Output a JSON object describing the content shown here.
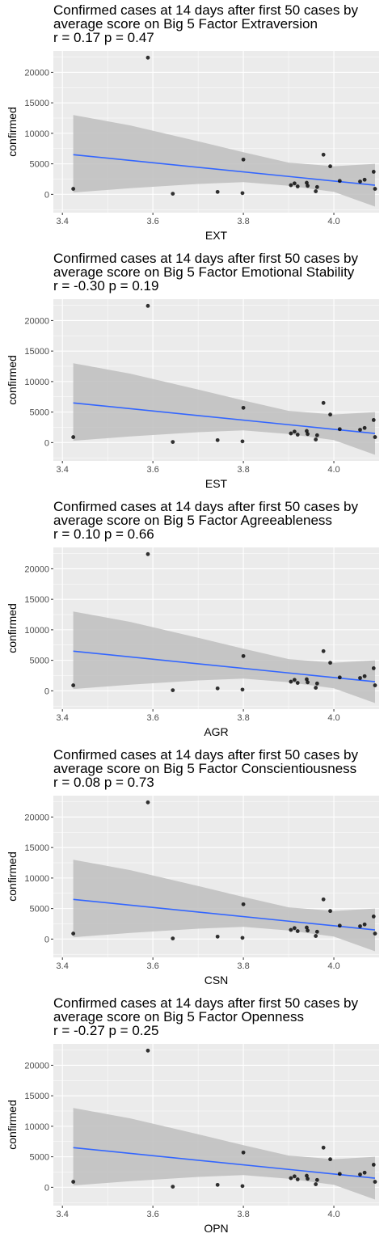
{
  "chart_data": [
    {
      "type": "scatter",
      "title": "Confirmed cases at 14 days after first 50 cases by",
      "subtitle": "average score on Big 5 Factor Extraversion",
      "stat_label": "r = 0.17 p = 0.47",
      "xlabel": "EXT",
      "ylabel": "confirmed",
      "xlim": [
        3.38,
        4.1
      ],
      "ylim": [
        -3000,
        23500
      ],
      "x_ticks": [
        3.4,
        3.6,
        3.8,
        4.0
      ],
      "x_tick_labels": [
        "3.4",
        "3.6",
        "3.8",
        "4.0"
      ],
      "y_ticks": [
        0,
        5000,
        10000,
        15000,
        20000
      ],
      "y_tick_labels": [
        "0",
        "5000",
        "10000",
        "15000",
        "20000"
      ],
      "grid": true,
      "points": {
        "x": [
          3.424,
          3.589,
          3.644,
          3.743,
          3.798,
          3.8,
          3.905,
          3.913,
          3.92,
          3.94,
          3.942,
          3.96,
          3.963,
          3.977,
          3.992,
          4.013,
          4.058,
          4.068,
          4.088,
          4.091
        ],
        "y": [
          900,
          22400,
          100,
          400,
          200,
          5700,
          1500,
          1800,
          1300,
          1900,
          1400,
          500,
          1200,
          6500,
          4600,
          2200,
          2100,
          2400,
          3700,
          900
        ]
      },
      "fit_line": {
        "x": [
          3.424,
          4.091
        ],
        "y": [
          6500,
          1500
        ]
      },
      "confidence_band": {
        "x": [
          3.424,
          3.55,
          3.7,
          3.8,
          3.9,
          4.0,
          4.091
        ],
        "upper": [
          13000,
          11300,
          8700,
          6900,
          5200,
          4600,
          5000
        ],
        "lower": [
          300,
          1000,
          1700,
          2000,
          1400,
          400,
          -2000
        ]
      },
      "colors": {
        "panel": "#ebebeb",
        "grid": "#ffffff",
        "band": "#bebebe",
        "line": "#3366ff",
        "point": "#000000"
      }
    },
    {
      "type": "scatter",
      "title": "Confirmed cases at 14 days after first 50 cases by",
      "subtitle": "average score on Big 5 Factor Emotional Stability",
      "stat_label": "r = -0.30 p = 0.19",
      "xlabel": "EST",
      "ylabel": "confirmed",
      "xlim": [
        3.38,
        4.1
      ],
      "ylim": [
        -3000,
        23500
      ],
      "x_ticks": [
        3.4,
        3.6,
        3.8,
        4.0
      ],
      "x_tick_labels": [
        "3.4",
        "3.6",
        "3.8",
        "4.0"
      ],
      "y_ticks": [
        0,
        5000,
        10000,
        15000,
        20000
      ],
      "y_tick_labels": [
        "0",
        "5000",
        "10000",
        "15000",
        "20000"
      ],
      "grid": true,
      "points": {
        "x": [
          3.424,
          3.589,
          3.644,
          3.743,
          3.798,
          3.8,
          3.905,
          3.913,
          3.92,
          3.94,
          3.942,
          3.96,
          3.963,
          3.977,
          3.992,
          4.013,
          4.058,
          4.068,
          4.088,
          4.091
        ],
        "y": [
          900,
          22400,
          100,
          400,
          200,
          5700,
          1500,
          1800,
          1300,
          1900,
          1400,
          500,
          1200,
          6500,
          4600,
          2200,
          2100,
          2400,
          3700,
          900
        ]
      },
      "fit_line": {
        "x": [
          3.424,
          4.091
        ],
        "y": [
          6500,
          1500
        ]
      },
      "confidence_band": {
        "x": [
          3.424,
          3.55,
          3.7,
          3.8,
          3.9,
          4.0,
          4.091
        ],
        "upper": [
          13000,
          11300,
          8700,
          6900,
          5200,
          4600,
          5000
        ],
        "lower": [
          300,
          1000,
          1700,
          2000,
          1400,
          400,
          -2000
        ]
      },
      "colors": {
        "panel": "#ebebeb",
        "grid": "#ffffff",
        "band": "#bebebe",
        "line": "#3366ff",
        "point": "#000000"
      }
    },
    {
      "type": "scatter",
      "title": "Confirmed cases at 14 days after first 50 cases by",
      "subtitle": "average score on Big 5 Factor Agreeableness",
      "stat_label": "r = 0.10 p = 0.66",
      "xlabel": "AGR",
      "ylabel": "confirmed",
      "xlim": [
        3.38,
        4.1
      ],
      "ylim": [
        -3000,
        23500
      ],
      "x_ticks": [
        3.4,
        3.6,
        3.8,
        4.0
      ],
      "x_tick_labels": [
        "3.4",
        "3.6",
        "3.8",
        "4.0"
      ],
      "y_ticks": [
        0,
        5000,
        10000,
        15000,
        20000
      ],
      "y_tick_labels": [
        "0",
        "5000",
        "10000",
        "15000",
        "20000"
      ],
      "grid": true,
      "points": {
        "x": [
          3.424,
          3.589,
          3.644,
          3.743,
          3.798,
          3.8,
          3.905,
          3.913,
          3.92,
          3.94,
          3.942,
          3.96,
          3.963,
          3.977,
          3.992,
          4.013,
          4.058,
          4.068,
          4.088,
          4.091
        ],
        "y": [
          900,
          22400,
          100,
          400,
          200,
          5700,
          1500,
          1800,
          1300,
          1900,
          1400,
          500,
          1200,
          6500,
          4600,
          2200,
          2100,
          2400,
          3700,
          900
        ]
      },
      "fit_line": {
        "x": [
          3.424,
          4.091
        ],
        "y": [
          6500,
          1500
        ]
      },
      "confidence_band": {
        "x": [
          3.424,
          3.55,
          3.7,
          3.8,
          3.9,
          4.0,
          4.091
        ],
        "upper": [
          13000,
          11300,
          8700,
          6900,
          5200,
          4600,
          5000
        ],
        "lower": [
          300,
          1000,
          1700,
          2000,
          1400,
          400,
          -2000
        ]
      },
      "colors": {
        "panel": "#ebebeb",
        "grid": "#ffffff",
        "band": "#bebebe",
        "line": "#3366ff",
        "point": "#000000"
      }
    },
    {
      "type": "scatter",
      "title": "Confirmed cases at 14 days after first 50 cases by",
      "subtitle": "average score on Big 5 Factor Conscientiousness",
      "stat_label": "r = 0.08 p = 0.73",
      "xlabel": "CSN",
      "ylabel": "confirmed",
      "xlim": [
        3.38,
        4.1
      ],
      "ylim": [
        -3000,
        23500
      ],
      "x_ticks": [
        3.4,
        3.6,
        3.8,
        4.0
      ],
      "x_tick_labels": [
        "3.4",
        "3.6",
        "3.8",
        "4.0"
      ],
      "y_ticks": [
        0,
        5000,
        10000,
        15000,
        20000
      ],
      "y_tick_labels": [
        "0",
        "5000",
        "10000",
        "15000",
        "20000"
      ],
      "grid": true,
      "points": {
        "x": [
          3.424,
          3.589,
          3.644,
          3.743,
          3.798,
          3.8,
          3.905,
          3.913,
          3.92,
          3.94,
          3.942,
          3.96,
          3.963,
          3.977,
          3.992,
          4.013,
          4.058,
          4.068,
          4.088,
          4.091
        ],
        "y": [
          900,
          22400,
          100,
          400,
          200,
          5700,
          1500,
          1800,
          1300,
          1900,
          1400,
          500,
          1200,
          6500,
          4600,
          2200,
          2100,
          2400,
          3700,
          900
        ]
      },
      "fit_line": {
        "x": [
          3.424,
          4.091
        ],
        "y": [
          6500,
          1500
        ]
      },
      "confidence_band": {
        "x": [
          3.424,
          3.55,
          3.7,
          3.8,
          3.9,
          4.0,
          4.091
        ],
        "upper": [
          13000,
          11300,
          8700,
          6900,
          5200,
          4600,
          5000
        ],
        "lower": [
          300,
          1000,
          1700,
          2000,
          1400,
          400,
          -2000
        ]
      },
      "colors": {
        "panel": "#ebebeb",
        "grid": "#ffffff",
        "band": "#bebebe",
        "line": "#3366ff",
        "point": "#000000"
      }
    },
    {
      "type": "scatter",
      "title": "Confirmed cases at 14 days after first 50 cases by",
      "subtitle": "average score on Big 5 Factor Openness",
      "stat_label": "r = -0.27 p = 0.25",
      "xlabel": "OPN",
      "ylabel": "confirmed",
      "xlim": [
        3.38,
        4.1
      ],
      "ylim": [
        -3000,
        23500
      ],
      "x_ticks": [
        3.4,
        3.6,
        3.8,
        4.0
      ],
      "x_tick_labels": [
        "3.4",
        "3.6",
        "3.8",
        "4.0"
      ],
      "y_ticks": [
        0,
        5000,
        10000,
        15000,
        20000
      ],
      "y_tick_labels": [
        "0",
        "5000",
        "10000",
        "15000",
        "20000"
      ],
      "grid": true,
      "points": {
        "x": [
          3.424,
          3.589,
          3.644,
          3.743,
          3.798,
          3.8,
          3.905,
          3.913,
          3.92,
          3.94,
          3.942,
          3.96,
          3.963,
          3.977,
          3.992,
          4.013,
          4.058,
          4.068,
          4.088,
          4.091
        ],
        "y": [
          900,
          22400,
          100,
          400,
          200,
          5700,
          1500,
          1800,
          1300,
          1900,
          1400,
          500,
          1200,
          6500,
          4600,
          2200,
          2100,
          2400,
          3700,
          900
        ]
      },
      "fit_line": {
        "x": [
          3.424,
          4.091
        ],
        "y": [
          6500,
          1500
        ]
      },
      "confidence_band": {
        "x": [
          3.424,
          3.55,
          3.7,
          3.8,
          3.9,
          4.0,
          4.091
        ],
        "upper": [
          13000,
          11300,
          8700,
          6900,
          5200,
          4600,
          5000
        ],
        "lower": [
          300,
          1000,
          1700,
          2000,
          1400,
          400,
          -2000
        ]
      },
      "colors": {
        "panel": "#ebebeb",
        "grid": "#ffffff",
        "band": "#bebebe",
        "line": "#3366ff",
        "point": "#000000"
      }
    }
  ]
}
